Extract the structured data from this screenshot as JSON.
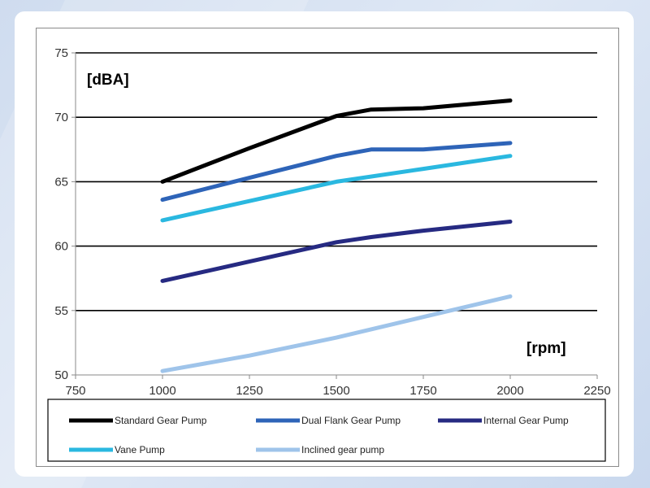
{
  "chart_data": {
    "type": "line",
    "ylabel": "[dBA]",
    "xlabel": "[rpm]",
    "xlim": [
      750,
      2250
    ],
    "ylim": [
      50,
      75
    ],
    "xticks": [
      750,
      1000,
      1250,
      1500,
      1750,
      2000,
      2250
    ],
    "yticks": [
      50,
      55,
      60,
      65,
      70,
      75
    ],
    "grid": "horizontal",
    "legend_position": "bottom",
    "colors": {
      "standard": "#000000",
      "dual_flank": "#2e64b8",
      "internal": "#262a82",
      "vane": "#2ab8e0",
      "inclined": "#9fc4ea"
    },
    "series": [
      {
        "name": "Standard Gear Pump",
        "color": "#000000",
        "x": [
          1000,
          1250,
          1500,
          1600,
          1750,
          2000
        ],
        "y": [
          65.0,
          67.6,
          70.1,
          70.6,
          70.7,
          71.3
        ]
      },
      {
        "name": "Dual Flank Gear Pump",
        "color": "#2e64b8",
        "x": [
          1000,
          1250,
          1500,
          1600,
          1750,
          2000
        ],
        "y": [
          63.6,
          65.3,
          67.0,
          67.5,
          67.5,
          68.0
        ]
      },
      {
        "name": "Internal Gear Pump",
        "color": "#262a82",
        "x": [
          1000,
          1250,
          1500,
          1600,
          1750,
          2000
        ],
        "y": [
          57.3,
          58.8,
          60.3,
          60.7,
          61.2,
          61.9
        ]
      },
      {
        "name": "Vane Pump",
        "color": "#2ab8e0",
        "x": [
          1000,
          1250,
          1500,
          1750,
          2000
        ],
        "y": [
          62.0,
          63.5,
          65.0,
          66.0,
          67.0
        ]
      },
      {
        "name": "Inclined gear pump",
        "color": "#9fc4ea",
        "x": [
          1000,
          1250,
          1500,
          1750,
          2000
        ],
        "y": [
          50.3,
          51.5,
          52.9,
          54.5,
          56.1
        ]
      }
    ]
  }
}
